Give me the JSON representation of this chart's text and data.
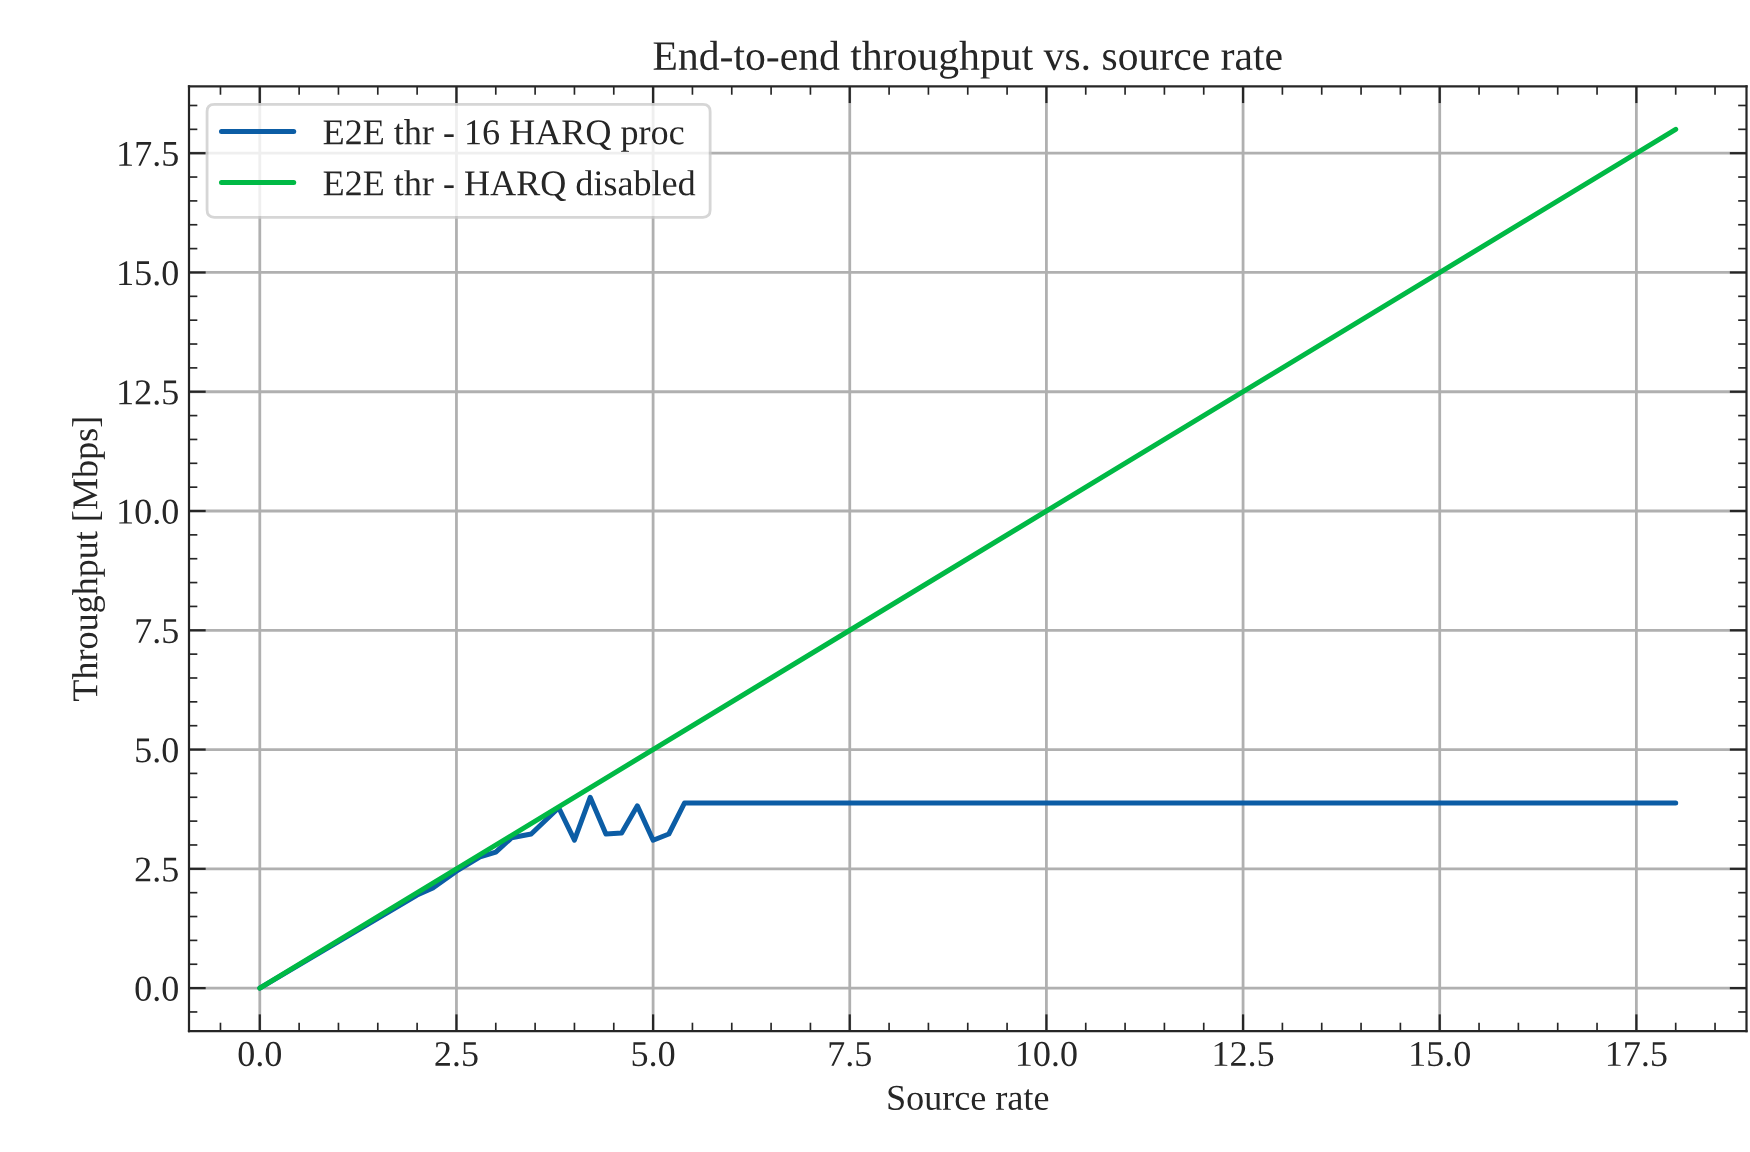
{
  "chart_data": {
    "type": "line",
    "title": "End-to-end throughput vs. source rate",
    "xlabel": "Source rate",
    "ylabel": "Throughput [Mbps]",
    "xlim": [
      -0.9,
      18.9
    ],
    "ylim": [
      -0.9,
      18.9
    ],
    "xticks": [
      {
        "value": 0,
        "label": "0.0"
      },
      {
        "value": 2.5,
        "label": "2.5"
      },
      {
        "value": 5,
        "label": "5.0"
      },
      {
        "value": 7.5,
        "label": "7.5"
      },
      {
        "value": 10,
        "label": "10.0"
      },
      {
        "value": 12.5,
        "label": "12.5"
      },
      {
        "value": 15,
        "label": "15.0"
      },
      {
        "value": 17.5,
        "label": "17.5"
      }
    ],
    "yticks": [
      {
        "value": 0,
        "label": "0.0"
      },
      {
        "value": 2.5,
        "label": "2.5"
      },
      {
        "value": 5,
        "label": "5.0"
      },
      {
        "value": 7.5,
        "label": "7.5"
      },
      {
        "value": 10,
        "label": "10.0"
      },
      {
        "value": 12.5,
        "label": "12.5"
      },
      {
        "value": 15,
        "label": "15.0"
      },
      {
        "value": 17.5,
        "label": "17.5"
      }
    ],
    "grid": true,
    "legend": "top left",
    "marker": "none",
    "line_style": "solid",
    "series": [
      {
        "name": "E2E thr - 16 HARQ proc",
        "color": "#0c5da5",
        "x": [
          0,
          2.0,
          2.2,
          2.5,
          2.8,
          3.0,
          3.2,
          3.45,
          3.8,
          4.0,
          4.2,
          4.4,
          4.6,
          4.8,
          5.0,
          5.2,
          5.4,
          18
        ],
        "values": [
          0,
          1.95,
          2.1,
          2.45,
          2.75,
          2.85,
          3.15,
          3.23,
          3.78,
          3.1,
          4.0,
          3.23,
          3.25,
          3.82,
          3.1,
          3.23,
          3.88,
          3.88
        ]
      },
      {
        "name": "E2E thr - HARQ disabled",
        "color": "#00b945",
        "x": [
          0,
          18
        ],
        "values": [
          0,
          18
        ]
      }
    ]
  }
}
